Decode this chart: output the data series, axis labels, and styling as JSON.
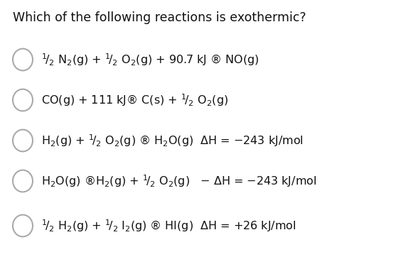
{
  "title": "Which of the following reactions is exothermic?",
  "background_color": "#ffffff",
  "circle_color": "#aaaaaa",
  "circle_linewidth": 1.5,
  "text_color": "#111111",
  "title_fontsize": 12.5,
  "text_fontsize": 11.5,
  "options": [
    {
      "label": "$^1\\!/_2$ N$_2$(g) + $^1\\!/_2$ O$_2$(g) + 90.7 kJ ® NO(g)"
    },
    {
      "label": "CO(g) + 111 kJ® C(s) + $^1\\!/_2$ O$_2$(g)"
    },
    {
      "label": "H$_2$(g) + $^1\\!/_2$ O$_2$(g) ® H$_2$O(g)  ΔH = −243 kJ/mol"
    },
    {
      "label": "H$_2$O(g) ®H$_2$(g) + $^1\\!/_2$ O$_2$(g)   − ΔH = −243 kJ/mol"
    },
    {
      "label": "$^1\\!/_2$ H$_2$(g) + $^1\\!/_2$ I$_2$(g) ® HI(g)  ΔH = +26 kJ/mol"
    }
  ]
}
